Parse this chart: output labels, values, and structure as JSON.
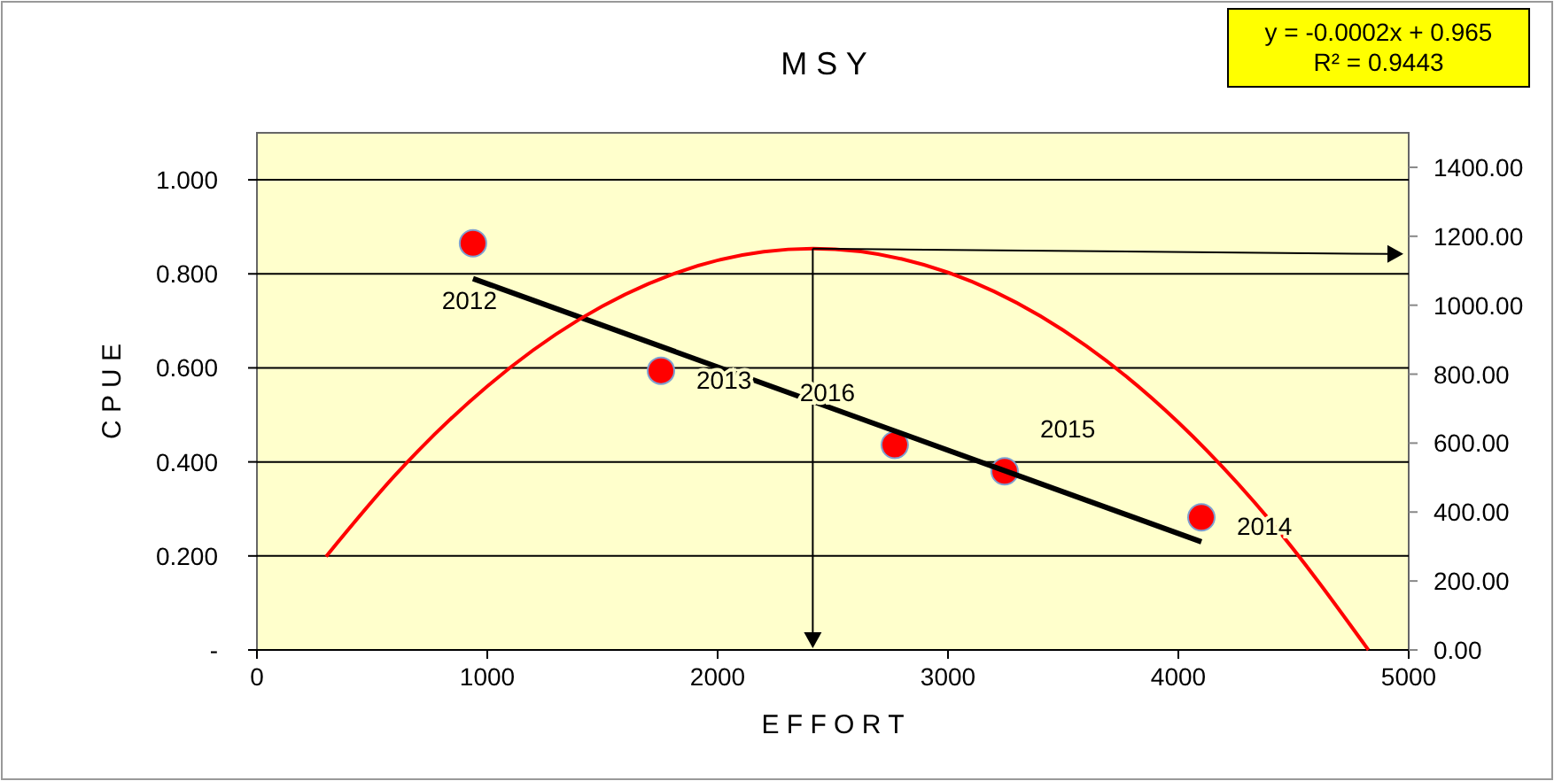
{
  "chart_data": {
    "type": "scatter",
    "title": "M S Y",
    "xlabel": "E F F O R T",
    "ylabel": "C P U E",
    "xlim": [
      0,
      5000
    ],
    "xticks": [
      0,
      1000,
      2000,
      3000,
      4000,
      5000
    ],
    "ylim": [
      0,
      1.1
    ],
    "yticks": [
      {
        "value": 0,
        "label": "-"
      },
      {
        "value": 0.2,
        "label": "0.200"
      },
      {
        "value": 0.4,
        "label": "0.400"
      },
      {
        "value": 0.6,
        "label": "0.600"
      },
      {
        "value": 0.8,
        "label": "0.800"
      },
      {
        "value": 1,
        "label": "1.000"
      }
    ],
    "y2lim": [
      0,
      1500
    ],
    "y2ticks": [
      {
        "value": 0,
        "label": "0.00"
      },
      {
        "value": 200,
        "label": "200.00"
      },
      {
        "value": 400,
        "label": "400.00"
      },
      {
        "value": 600,
        "label": "600.00"
      },
      {
        "value": 800,
        "label": "800.00"
      },
      {
        "value": 1000,
        "label": "1000.00"
      },
      {
        "value": 1200,
        "label": "1200.00"
      },
      {
        "value": 1400,
        "label": "1400.00"
      }
    ],
    "grid": "y",
    "marker": "circle",
    "series": [
      {
        "color": "#ff0000",
        "x": [
          938,
          1754,
          2769,
          3246,
          4100
        ],
        "values": [
          0.865,
          0.594,
          0.436,
          0.38,
          0.282
        ]
      },
      {
        "type": "line",
        "color": "#000000",
        "x": [
          938,
          4100
        ],
        "values": [
          0.79,
          0.23
        ],
        "marker": "none"
      },
      {
        "type": "line",
        "color": "#ff0000",
        "axis": "y2",
        "marker": "none",
        "x": [
          300,
          600,
          1000,
          1400,
          1800,
          2200,
          2413,
          2800,
          3200,
          3600,
          4000,
          4400,
          4825
        ],
        "values": [
          271,
          507,
          765,
          959,
          1089,
          1155,
          1164,
          1134,
          1040,
          882,
          660,
          374,
          0
        ]
      }
    ],
    "annotations": [
      {
        "text": "2012",
        "x": 938,
        "y": 0.865
      },
      {
        "text": "2013",
        "x": 1754,
        "y": 0.594
      },
      {
        "text": "2016",
        "x": 2769,
        "y": 0.436
      },
      {
        "text": "2015",
        "x": 3246,
        "y": 0.38
      },
      {
        "text": "2014",
        "x": 4100,
        "y": 0.282
      },
      "y = -0.0002x + 0.965\nR² = 0.9443"
    ]
  }
}
